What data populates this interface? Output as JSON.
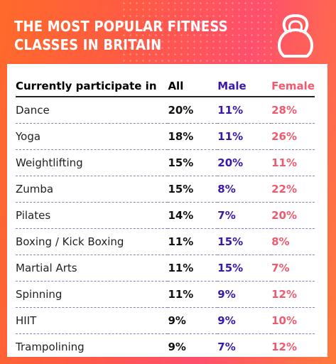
{
  "title": "THE MOST POPULAR FITNESS\nCLASSES IN BRITAIN",
  "colors": {
    "male": "#3a18a8",
    "female": "#f05a6e",
    "background_gradient": [
      "#ff6a2a",
      "#ff4f6d"
    ]
  },
  "icon": "kettlebell-icon",
  "chart_data": {
    "type": "table",
    "columns": [
      "Currently participate in",
      "All",
      "Male",
      "Female"
    ],
    "rows": [
      [
        "Dance",
        "20%",
        "11%",
        "28%"
      ],
      [
        "Yoga",
        "18%",
        "11%",
        "26%"
      ],
      [
        "Weightlifting",
        "15%",
        "20%",
        "11%"
      ],
      [
        "Zumba",
        "15%",
        "8%",
        "22%"
      ],
      [
        "Pilates",
        "14%",
        "7%",
        "20%"
      ],
      [
        "Boxing / Kick Boxing",
        "11%",
        "15%",
        "8%"
      ],
      [
        "Martial Arts",
        "11%",
        "15%",
        "7%"
      ],
      [
        "Spinning",
        "11%",
        "9%",
        "12%"
      ],
      [
        "HIIT",
        "9%",
        "9%",
        "10%"
      ],
      [
        "Trampolining",
        "9%",
        "7%",
        "12%"
      ]
    ]
  }
}
